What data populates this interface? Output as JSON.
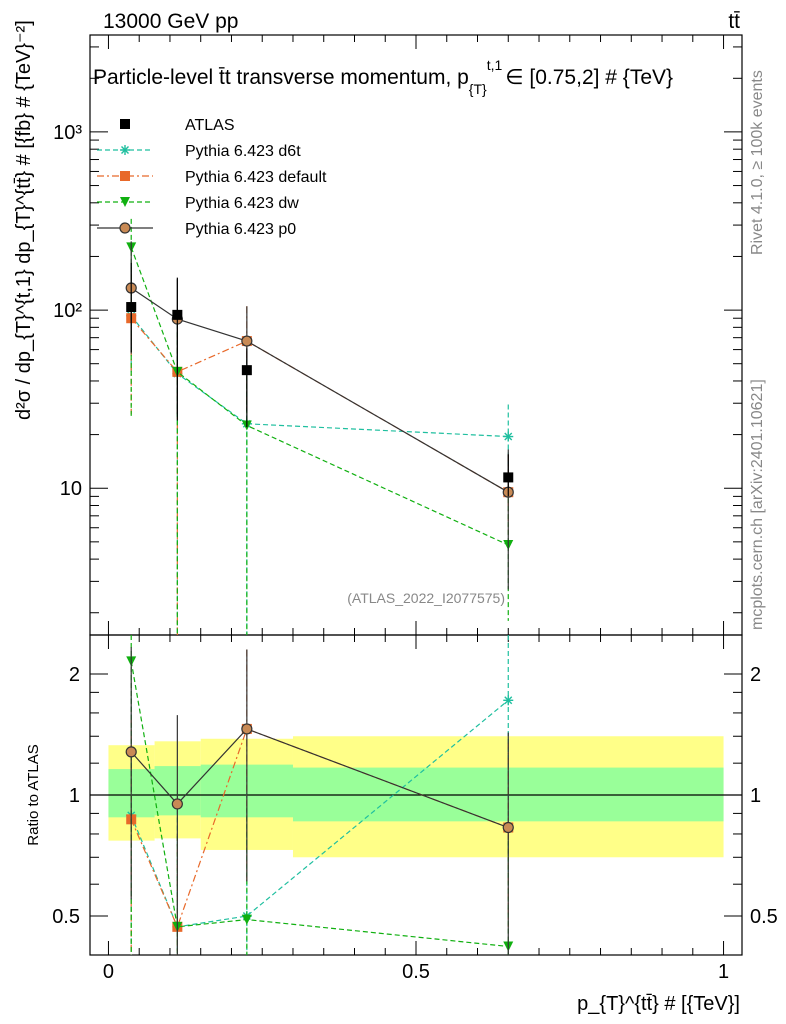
{
  "header": {
    "left": "13000 GeV pp",
    "right": "tt̄"
  },
  "title": "Particle-level t̄t transverse momentum, p",
  "title_sub": "{T}",
  "title_sup": "t,1",
  "title_tail": "∈ [0.75,2] # {TeV}",
  "side_label_top": "Rivet 4.1.0, ≥ 100k events",
  "side_label_bottom": "mcplots.cern.ch [arXiv:2401.10621]",
  "watermark": "(ATLAS_2022_I2077575)",
  "ylabel_main": "d²σ / dp_{T}^{t,1} dp_{T}^{tt̄} # [{fb} # {TeV}⁻²]",
  "ylabel_ratio": "Ratio to ATLAS",
  "xlabel": "p_{T}^{tt̄} # [{TeV}]",
  "colors": {
    "atlas": "#000000",
    "d6t": "#1fbf9f",
    "default": "#e8692a",
    "dw": "#10b010",
    "p0": "#333333",
    "band_outer": "#ffff88",
    "band_inner": "#99ff99"
  },
  "chart_data": [
    {
      "type": "scatter",
      "panel": "main",
      "yscale": "log",
      "xlim": [
        -0.03,
        1.03
      ],
      "ylim": [
        1.5,
        3500
      ],
      "yticks": [
        10,
        100,
        1000
      ],
      "ytick_labels": [
        "10",
        "10²",
        "10³"
      ],
      "legend": [
        "ATLAS",
        "Pythia 6.423 d6t",
        "Pythia 6.423 default",
        "Pythia 6.423 dw",
        "Pythia 6.423 p0"
      ],
      "legend_position": "top-left",
      "series": [
        {
          "name": "ATLAS",
          "key": "atlas",
          "marker": "square",
          "line": "none",
          "x": [
            0.037,
            0.112,
            0.225,
            0.65
          ],
          "y": [
            104,
            94,
            46,
            11.5
          ],
          "yerr_lo": [
            46,
            70,
            24,
            2.5
          ],
          "yerr_hi": [
            80,
            58,
            15,
            4
          ]
        },
        {
          "name": "Pythia 6.423 d6t",
          "key": "d6t",
          "marker": "star",
          "line": "dashed",
          "x": [
            0.037,
            0.112,
            0.225,
            0.65
          ],
          "y": [
            93,
            44,
            23,
            19.5
          ],
          "yerr_lo": [
            50,
            43,
            22,
            6
          ],
          "yerr_hi": [
            90,
            40,
            30,
            10
          ]
        },
        {
          "name": "Pythia 6.423 default",
          "key": "default",
          "marker": "square",
          "line": "dashdot",
          "x": [
            0.037,
            0.112,
            0.225,
            0.65
          ],
          "y": [
            90,
            45,
            67,
            9.5
          ],
          "yerr_lo": [
            64,
            44,
            39,
            4
          ],
          "yerr_hi": [
            70,
            30,
            38,
            6
          ]
        },
        {
          "name": "Pythia 6.423 dw",
          "key": "dw",
          "marker": "triangle-down",
          "line": "dashed",
          "x": [
            0.037,
            0.112,
            0.225,
            0.65
          ],
          "y": [
            225,
            45,
            22.5,
            4.8
          ],
          "yerr_lo": [
            200,
            44,
            21,
            3
          ],
          "yerr_hi": [
            100,
            30,
            20,
            4
          ]
        },
        {
          "name": "Pythia 6.423 p0",
          "key": "p0",
          "marker": "circle-open",
          "line": "solid",
          "x": [
            0.037,
            0.112,
            0.225,
            0.65
          ],
          "y": [
            133,
            89,
            67,
            9.5
          ],
          "yerr_lo": [
            76,
            63,
            40,
            6.8
          ],
          "yerr_hi": [
            110,
            60,
            38,
            7
          ]
        }
      ]
    },
    {
      "type": "scatter",
      "panel": "ratio",
      "yscale": "log",
      "xlim": [
        -0.03,
        1.03
      ],
      "ylim": [
        0.4,
        2.5
      ],
      "yticks": [
        0.5,
        1,
        2
      ],
      "ytick_labels": [
        "0.5",
        "1",
        "2"
      ],
      "xticks": [
        0,
        0.5,
        1
      ],
      "xtick_labels": [
        "0",
        "0.5",
        "1"
      ],
      "bands": [
        {
          "x0": 0.0,
          "x1": 0.075,
          "inner": [
            0.88,
            1.16
          ],
          "outer": [
            0.77,
            1.33
          ]
        },
        {
          "x0": 0.075,
          "x1": 0.15,
          "inner": [
            0.89,
            1.18
          ],
          "outer": [
            0.78,
            1.36
          ]
        },
        {
          "x0": 0.15,
          "x1": 0.3,
          "inner": [
            0.88,
            1.19
          ],
          "outer": [
            0.73,
            1.38
          ]
        },
        {
          "x0": 0.3,
          "x1": 1.0,
          "inner": [
            0.86,
            1.17
          ],
          "outer": [
            0.7,
            1.4
          ]
        }
      ],
      "series": [
        {
          "name": "Pythia 6.423 d6t",
          "key": "d6t",
          "marker": "star",
          "line": "dashed",
          "x": [
            0.037,
            0.112,
            0.225,
            0.65
          ],
          "y": [
            0.89,
            0.47,
            0.5,
            1.72
          ],
          "yerr_lo": [
            0.49,
            0.46,
            0.49,
            1.1
          ],
          "yerr_hi": [
            0.85,
            0.45,
            0.66,
            0.9
          ]
        },
        {
          "name": "Pythia 6.423 default",
          "key": "default",
          "marker": "square",
          "line": "dashdot",
          "x": [
            0.037,
            0.112,
            0.225,
            0.65
          ],
          "y": [
            0.87,
            0.47,
            1.46,
            0.83
          ],
          "yerr_lo": [
            0.63,
            0.46,
            0.85,
            0.36
          ],
          "yerr_hi": [
            0.67,
            0.33,
            0.84,
            0.52
          ]
        },
        {
          "name": "Pythia 6.423 dw",
          "key": "dw",
          "marker": "triangle-down",
          "line": "dashed",
          "x": [
            0.037,
            0.112,
            0.225,
            0.65
          ],
          "y": [
            2.15,
            0.47,
            0.49,
            0.42
          ],
          "yerr_lo": [
            1.93,
            0.46,
            0.48,
            0.26
          ],
          "yerr_hi": [
            0.96,
            0.32,
            0.44,
            0.35
          ]
        },
        {
          "name": "Pythia 6.423 p0",
          "key": "p0",
          "marker": "circle-open",
          "line": "solid",
          "x": [
            0.037,
            0.112,
            0.225,
            0.65
          ],
          "y": [
            1.28,
            0.95,
            1.46,
            0.83
          ],
          "yerr_lo": [
            0.73,
            0.67,
            0.85,
            0.58
          ],
          "yerr_hi": [
            1.05,
            0.63,
            0.84,
            0.6
          ]
        }
      ]
    }
  ]
}
